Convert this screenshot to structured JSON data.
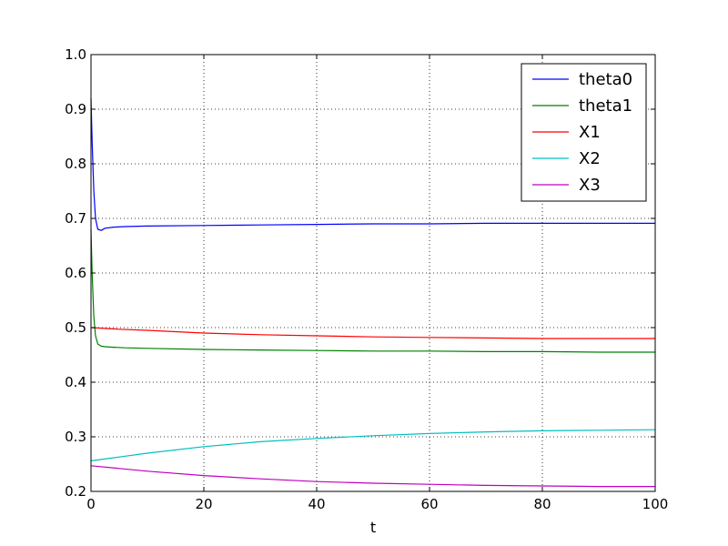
{
  "chart_data": {
    "type": "line",
    "title": "",
    "xlabel": "t",
    "ylabel": "",
    "xlim": [
      0,
      100
    ],
    "ylim": [
      0.2,
      1.0
    ],
    "xticks": [
      0,
      20,
      40,
      60,
      80,
      100
    ],
    "yticks": [
      0.2,
      0.3,
      0.4,
      0.5,
      0.6,
      0.7,
      0.8,
      0.9,
      1.0
    ],
    "xtick_labels": [
      "0",
      "20",
      "40",
      "60",
      "80",
      "100"
    ],
    "ytick_labels": [
      "0.2",
      "0.3",
      "0.4",
      "0.5",
      "0.6",
      "0.7",
      "0.8",
      "0.9",
      "1.0"
    ],
    "grid": true,
    "legend_position": "top-right",
    "series": [
      {
        "name": "theta0",
        "color": "#0000ff",
        "x": [
          0,
          0.2,
          0.5,
          0.8,
          1.2,
          1.8,
          2.5,
          4,
          6,
          10,
          20,
          30,
          40,
          50,
          60,
          70,
          80,
          90,
          100
        ],
        "y": [
          0.92,
          0.84,
          0.75,
          0.7,
          0.68,
          0.678,
          0.682,
          0.684,
          0.685,
          0.686,
          0.687,
          0.688,
          0.689,
          0.69,
          0.69,
          0.691,
          0.691,
          0.691,
          0.691
        ]
      },
      {
        "name": "theta1",
        "color": "#008000",
        "x": [
          0,
          0.2,
          0.5,
          0.8,
          1.2,
          1.8,
          2.5,
          4,
          6,
          10,
          20,
          30,
          40,
          50,
          60,
          70,
          80,
          90,
          100
        ],
        "y": [
          0.68,
          0.6,
          0.52,
          0.485,
          0.47,
          0.466,
          0.465,
          0.464,
          0.463,
          0.462,
          0.46,
          0.459,
          0.458,
          0.457,
          0.457,
          0.456,
          0.456,
          0.455,
          0.455
        ]
      },
      {
        "name": "X1",
        "color": "#ff0000",
        "x": [
          0,
          5,
          10,
          20,
          30,
          40,
          50,
          60,
          70,
          80,
          90,
          100
        ],
        "y": [
          0.5,
          0.497,
          0.495,
          0.49,
          0.487,
          0.485,
          0.483,
          0.482,
          0.481,
          0.48,
          0.48,
          0.48
        ]
      },
      {
        "name": "X2",
        "color": "#00bfbf",
        "x": [
          0,
          5,
          10,
          20,
          30,
          40,
          50,
          60,
          70,
          80,
          90,
          100
        ],
        "y": [
          0.256,
          0.263,
          0.27,
          0.282,
          0.291,
          0.297,
          0.302,
          0.306,
          0.309,
          0.311,
          0.312,
          0.313
        ]
      },
      {
        "name": "X3",
        "color": "#bf00bf",
        "x": [
          0,
          5,
          10,
          20,
          30,
          40,
          50,
          60,
          70,
          80,
          90,
          100
        ],
        "y": [
          0.247,
          0.242,
          0.237,
          0.229,
          0.223,
          0.218,
          0.215,
          0.213,
          0.211,
          0.21,
          0.209,
          0.209
        ]
      }
    ]
  }
}
